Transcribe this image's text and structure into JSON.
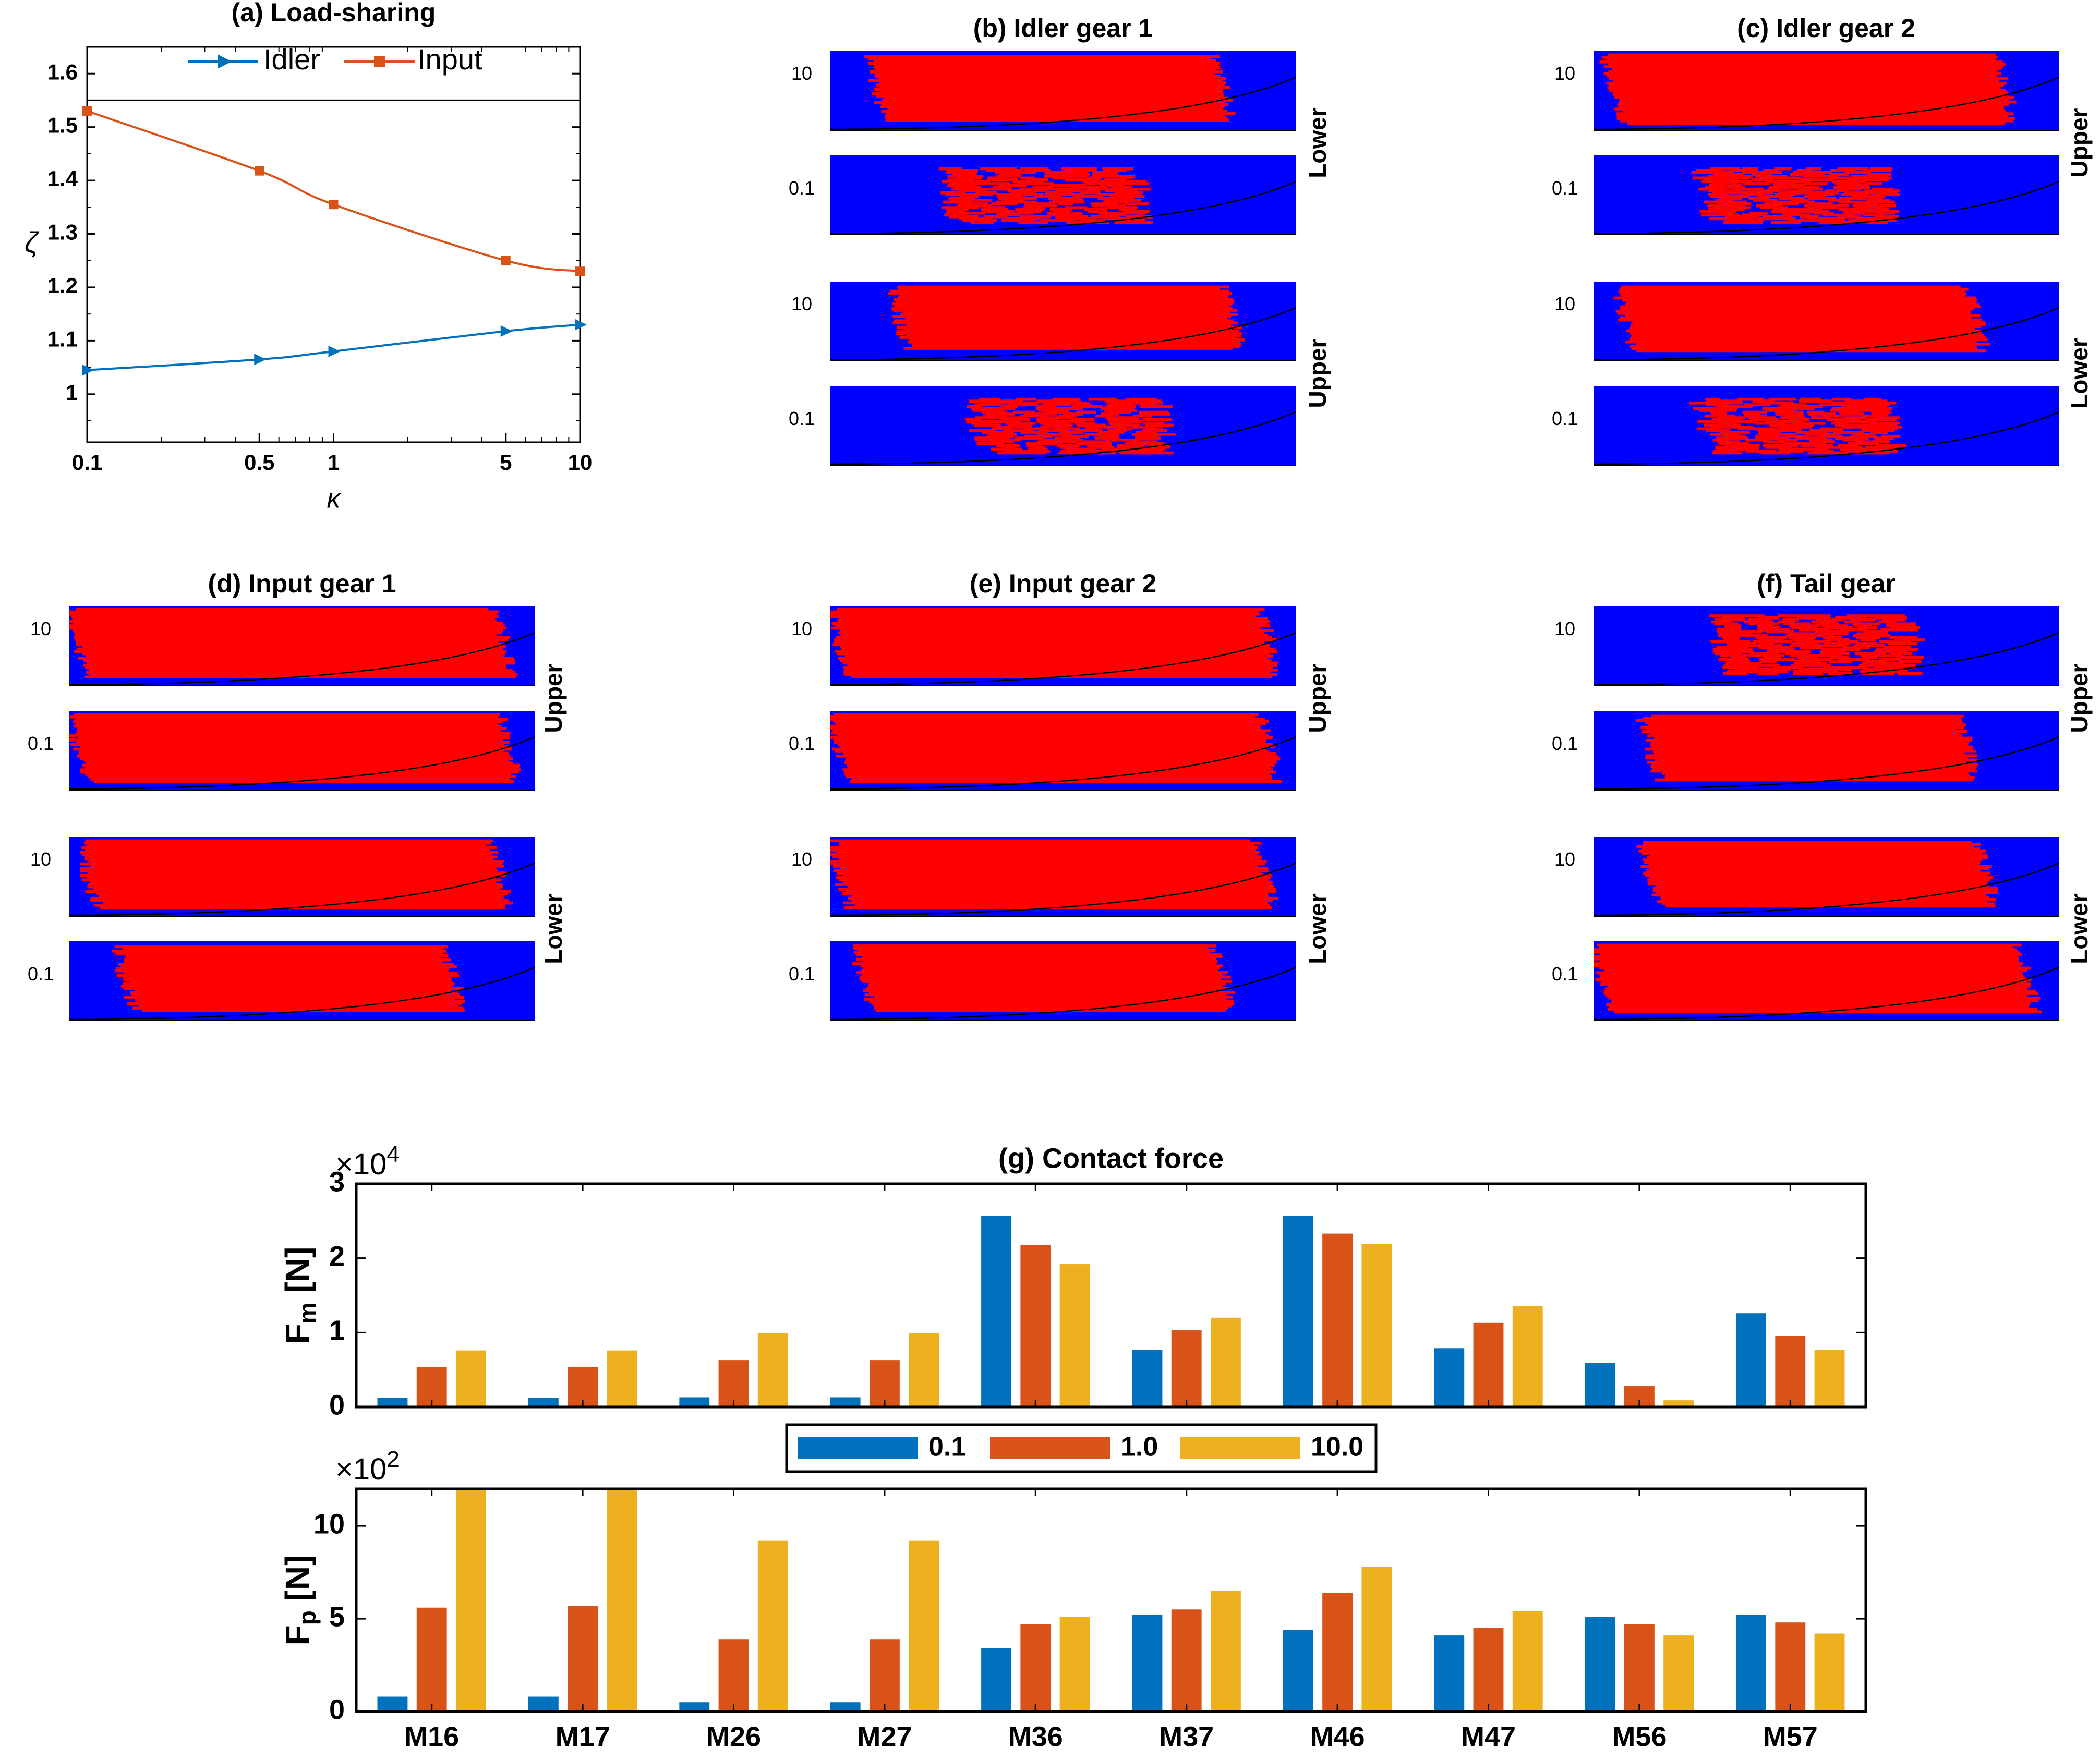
{
  "colors": {
    "idler": "#0072BD",
    "input": "#D95319",
    "bar_blue": "#0072BD",
    "bar_orange": "#D95319",
    "bar_yellow": "#EDB120",
    "map_contact": "#FF0000",
    "map_background": "#0000FF",
    "axis": "#000000"
  },
  "chart_data": [
    {
      "id": "a",
      "type": "line",
      "title": "(a) Load-sharing",
      "xlabel": "κ",
      "ylabel": "ζ",
      "xscale": "log",
      "xlim": [
        0.1,
        10
      ],
      "ylim": [
        0.91,
        1.65
      ],
      "x": [
        0.1,
        0.5,
        1,
        5,
        10
      ],
      "x_tick_labels": [
        "0.1",
        "0.5",
        "1",
        "5",
        "10"
      ],
      "y_ticks": [
        1,
        1.1,
        1.2,
        1.3,
        1.4,
        1.5,
        1.6
      ],
      "y_tick_labels": [
        "1",
        "1.1",
        "1.2",
        "1.3",
        "1.4",
        "1.5",
        "1.6"
      ],
      "reference_line": 1.55,
      "legend_position": "top",
      "series": [
        {
          "name": "Idler",
          "values": [
            1.045,
            1.065,
            1.08,
            1.118,
            1.13
          ]
        },
        {
          "name": "Input",
          "values": [
            1.53,
            1.418,
            1.355,
            1.25,
            1.23
          ]
        }
      ]
    },
    {
      "id": "maps",
      "type": "heatmap",
      "description_values": "tooth contact maps (red = contact region)",
      "panels": [
        {
          "id": "b",
          "title": "(b) Idler gear 1",
          "groups": [
            {
              "label": "Lower",
              "rows": [
                {
                  "kappa": "10",
                  "start": 0.08,
                  "end": 0.86,
                  "top": 0.05,
                  "bottom": 0.88,
                  "density": 0.95
                },
                {
                  "kappa": "0.1",
                  "start": 0.23,
                  "end": 0.7,
                  "top": 0.15,
                  "bottom": 0.85,
                  "density": 0.6
                }
              ]
            },
            {
              "label": "Upper",
              "rows": [
                {
                  "kappa": "10",
                  "start": 0.13,
                  "end": 0.88,
                  "top": 0.05,
                  "bottom": 0.85,
                  "density": 0.9
                },
                {
                  "kappa": "0.1",
                  "start": 0.3,
                  "end": 0.75,
                  "top": 0.15,
                  "bottom": 0.85,
                  "density": 0.55
                }
              ]
            }
          ]
        },
        {
          "id": "c",
          "title": "(c) Idler gear 2",
          "groups": [
            {
              "label": "Upper",
              "rows": [
                {
                  "kappa": "10",
                  "start": 0.02,
                  "end": 0.9,
                  "top": 0.03,
                  "bottom": 0.92,
                  "density": 0.95
                },
                {
                  "kappa": "0.1",
                  "start": 0.22,
                  "end": 0.68,
                  "top": 0.15,
                  "bottom": 0.85,
                  "density": 0.6
                }
              ]
            },
            {
              "label": "Lower",
              "rows": [
                {
                  "kappa": "10",
                  "start": 0.05,
                  "end": 0.84,
                  "top": 0.05,
                  "bottom": 0.88,
                  "density": 0.9
                },
                {
                  "kappa": "0.1",
                  "start": 0.22,
                  "end": 0.68,
                  "top": 0.15,
                  "bottom": 0.85,
                  "density": 0.55
                }
              ]
            }
          ]
        },
        {
          "id": "d",
          "title": "(d) Input gear 1",
          "groups": [
            {
              "label": "Upper",
              "rows": [
                {
                  "kappa": "10",
                  "start": 0.0,
                  "end": 0.95,
                  "top": 0.02,
                  "bottom": 0.9,
                  "density": 1.0
                },
                {
                  "kappa": "0.1",
                  "start": 0.0,
                  "end": 0.96,
                  "top": 0.03,
                  "bottom": 0.9,
                  "density": 1.0
                }
              ]
            },
            {
              "label": "Lower",
              "rows": [
                {
                  "kappa": "10",
                  "start": 0.02,
                  "end": 0.94,
                  "top": 0.03,
                  "bottom": 0.9,
                  "density": 0.95
                },
                {
                  "kappa": "0.1",
                  "start": 0.1,
                  "end": 0.84,
                  "top": 0.05,
                  "bottom": 0.88,
                  "density": 0.9
                }
              ]
            }
          ]
        },
        {
          "id": "e",
          "title": "(e) Input gear 2",
          "groups": [
            {
              "label": "Upper",
              "rows": [
                {
                  "kappa": "10",
                  "start": 0.0,
                  "end": 0.96,
                  "top": 0.02,
                  "bottom": 0.9,
                  "density": 1.0
                },
                {
                  "kappa": "0.1",
                  "start": 0.0,
                  "end": 0.96,
                  "top": 0.03,
                  "bottom": 0.9,
                  "density": 1.0
                }
              ]
            },
            {
              "label": "Lower",
              "rows": [
                {
                  "kappa": "10",
                  "start": 0.0,
                  "end": 0.95,
                  "top": 0.03,
                  "bottom": 0.9,
                  "density": 0.95
                },
                {
                  "kappa": "0.1",
                  "start": 0.05,
                  "end": 0.86,
                  "top": 0.04,
                  "bottom": 0.88,
                  "density": 0.9
                }
              ]
            }
          ]
        },
        {
          "id": "f",
          "title": "(f) Tail gear",
          "groups": [
            {
              "label": "Upper",
              "rows": [
                {
                  "kappa": "10",
                  "start": 0.25,
                  "end": 0.72,
                  "top": 0.1,
                  "bottom": 0.85,
                  "density": 0.7
                },
                {
                  "kappa": "0.1",
                  "start": 0.1,
                  "end": 0.82,
                  "top": 0.05,
                  "bottom": 0.88,
                  "density": 0.85
                }
              ]
            },
            {
              "label": "Lower",
              "rows": [
                {
                  "kappa": "10",
                  "start": 0.1,
                  "end": 0.86,
                  "top": 0.05,
                  "bottom": 0.88,
                  "density": 0.95
                },
                {
                  "kappa": "0.1",
                  "start": 0.0,
                  "end": 0.95,
                  "top": 0.03,
                  "bottom": 0.9,
                  "density": 1.0
                }
              ]
            }
          ]
        }
      ]
    },
    {
      "id": "g1",
      "type": "bar",
      "title": "(g) Contact force",
      "ylabel_main": "F",
      "ylabel_sub": "m",
      "ylabel_unit": " [N]",
      "exponent_base": "×10",
      "exponent_power": "4",
      "ylim": [
        0,
        3
      ],
      "y_ticks": [
        0,
        1,
        2,
        3
      ],
      "y_tick_labels": [
        "0",
        "1",
        "2",
        "3"
      ],
      "categories": [
        "M16",
        "M17",
        "M26",
        "M27",
        "M36",
        "M37",
        "M46",
        "M47",
        "M56",
        "M57"
      ],
      "series": [
        {
          "name": "0.1",
          "values": [
            0.12,
            0.12,
            0.13,
            0.13,
            2.57,
            0.77,
            2.57,
            0.79,
            0.59,
            1.26
          ]
        },
        {
          "name": "1.0",
          "values": [
            0.54,
            0.54,
            0.63,
            0.63,
            2.18,
            1.03,
            2.33,
            1.13,
            0.28,
            0.96
          ]
        },
        {
          "name": "10.0",
          "values": [
            0.76,
            0.76,
            0.99,
            0.99,
            1.92,
            1.2,
            2.19,
            1.36,
            0.09,
            0.77
          ]
        }
      ],
      "legend": [
        "0.1",
        "1.0",
        "10.0"
      ]
    },
    {
      "id": "g2",
      "type": "bar",
      "ylabel_main": "F",
      "ylabel_sub": "p",
      "ylabel_unit": " [N]",
      "exponent_base": "×10",
      "exponent_power": "2",
      "ylim": [
        0,
        12
      ],
      "y_ticks": [
        0,
        5,
        10
      ],
      "y_tick_labels": [
        "0",
        "5",
        "10"
      ],
      "categories": [
        "M16",
        "M17",
        "M26",
        "M27",
        "M36",
        "M37",
        "M46",
        "M47",
        "M56",
        "M57"
      ],
      "series": [
        {
          "name": "0.1",
          "values": [
            0.8,
            0.8,
            0.5,
            0.5,
            3.4,
            5.2,
            4.4,
            4.1,
            5.1,
            5.2
          ]
        },
        {
          "name": "1.0",
          "values": [
            5.6,
            5.7,
            3.9,
            3.9,
            4.7,
            5.5,
            6.4,
            4.5,
            4.7,
            4.8
          ]
        },
        {
          "name": "10.0",
          "values": [
            12.0,
            12.0,
            9.2,
            9.2,
            5.1,
            6.5,
            7.8,
            5.4,
            4.1,
            4.2
          ]
        }
      ]
    }
  ]
}
